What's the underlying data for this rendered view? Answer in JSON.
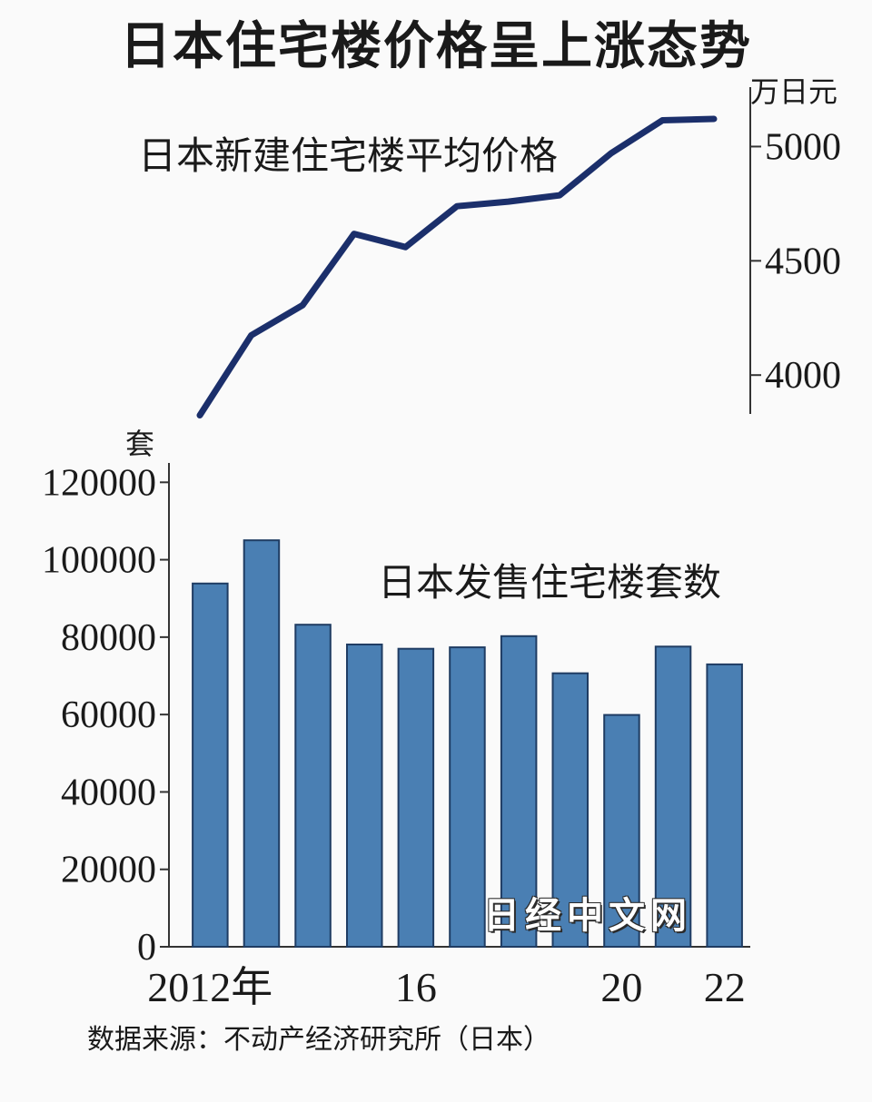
{
  "title": "日本住宅楼价格呈上涨态势",
  "source": "数据来源：不动产经济研究所（日本）",
  "watermark": "日经中文网",
  "colors": {
    "line": "#1b2f6b",
    "bar": "#4a7fb3",
    "bar_edge": "#1f3c63"
  },
  "chart_data": [
    {
      "type": "line",
      "title": "日本新建住宅楼平均价格",
      "ylabel": "万日元",
      "ylim": [
        3830,
        5260
      ],
      "yticks": [
        4000,
        4500,
        5000
      ],
      "x": [
        2012,
        2013,
        2014,
        2015,
        2016,
        2017,
        2018,
        2019,
        2020,
        2021,
        2022
      ],
      "series": [
        {
          "values": [
            3824,
            4174,
            4306,
            4618,
            4560,
            4739,
            4759,
            4787,
            4971,
            5115,
            5121
          ]
        }
      ]
    },
    {
      "type": "bar",
      "title": "日本发售住宅楼套数",
      "ylabel": "套",
      "ylim": [
        0,
        125000
      ],
      "yticks": [
        0,
        20000,
        40000,
        60000,
        80000,
        100000,
        120000
      ],
      "categories": [
        2012,
        2013,
        2014,
        2015,
        2016,
        2017,
        2018,
        2019,
        2020,
        2021,
        2022
      ],
      "xtick_labels": [
        "2012年",
        "",
        "",
        "",
        "16",
        "",
        "",
        "",
        "20",
        "",
        "22"
      ],
      "values": [
        93861,
        105010,
        83205,
        78089,
        76993,
        77363,
        80256,
        70660,
        59907,
        77552,
        72967
      ]
    }
  ]
}
